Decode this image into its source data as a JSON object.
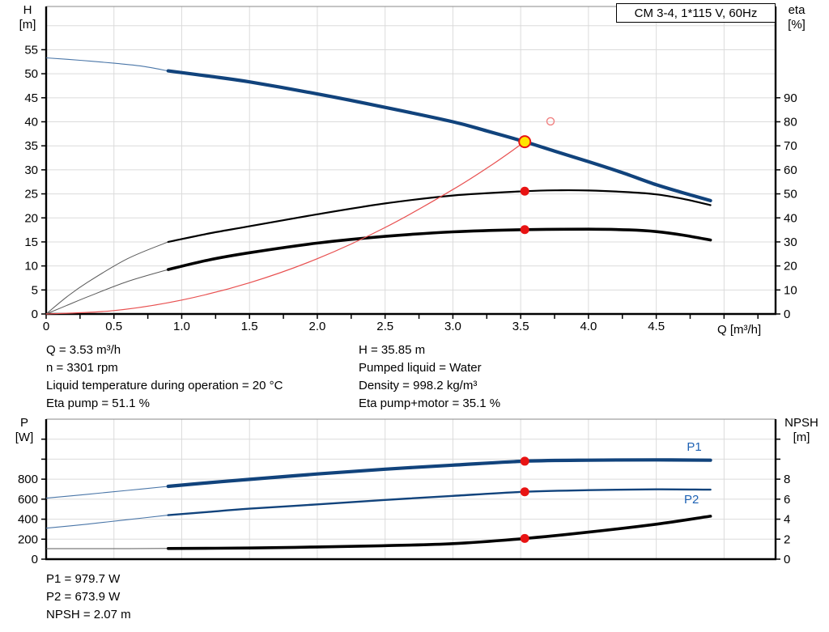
{
  "title_box": {
    "label": "CM 3-4, 1*115 V, 60Hz"
  },
  "colors": {
    "curve_blue": "#11437C",
    "label_blue": "#1E62B4",
    "red": "#E81313",
    "red_light": "#F08080",
    "yellow": "#FFE400",
    "grid": "#DBDBDB",
    "axis": "#000000",
    "border_light": "#8A8A8A",
    "thin_blue": "#4A76A8",
    "thin_black": "#5A5A5A"
  },
  "axis_corner_labels": {
    "top_left": [
      "H",
      "[m]"
    ],
    "top_right": [
      "eta",
      "[%]"
    ],
    "bottom_left": [
      "P",
      "[W]"
    ],
    "bottom_right": [
      "NPSH",
      "[m]"
    ]
  },
  "annotations": {
    "left": [
      "Q = 3.53 m³/h",
      "n = 3301 rpm",
      "Liquid temperature during operation = 20 °C",
      "Eta pump = 51.1 %"
    ],
    "right": [
      "H = 35.85 m",
      "Pumped liquid = Water",
      "Density = 998.2 kg/m³",
      "Eta pump+motor = 35.1 %"
    ],
    "bottom": [
      "P1 = 979.7 W",
      "P2 = 673.9 W",
      "NPSH = 2.07 m"
    ]
  },
  "chart_data": [
    {
      "type": "line",
      "title": "CM 3-4, 1*115 V, 60Hz",
      "xlabel": "Q [m³/h]",
      "ylabel_left": "H [m]",
      "ylabel_right": "eta [%]",
      "xlim": [
        0,
        5.38
      ],
      "ylim_left": [
        0,
        64
      ],
      "ylim_right": [
        0,
        128
      ],
      "x_grid": [
        0.5,
        1,
        1.5,
        2,
        2.5,
        3,
        3.5,
        4,
        4.5,
        5
      ],
      "y_grid_left": [
        5,
        10,
        15,
        20,
        25,
        30,
        35,
        40,
        45,
        50,
        55,
        60
      ],
      "x_ticks": [
        0,
        0.25,
        0.5,
        0.75,
        1,
        1.25,
        1.5,
        1.75,
        2,
        2.25,
        2.5,
        2.75,
        3,
        3.25,
        3.5,
        3.75,
        4,
        4.25,
        4.5,
        4.75,
        5,
        5.25
      ],
      "x_tick_labels": {
        "0": "0",
        "0.5": "0.5",
        "1": "1.0",
        "1.5": "1.5",
        "2": "2.0",
        "2.5": "2.5",
        "3": "3.0",
        "3.5": "3.5",
        "4": "4.0",
        "4.5": "4.5"
      },
      "left_ticks": [
        0,
        5,
        10,
        15,
        20,
        25,
        30,
        35,
        40,
        45,
        50,
        55
      ],
      "left_tick_labels": {
        "0": "0",
        "5": "5",
        "10": "10",
        "15": "15",
        "20": "20",
        "25": "25",
        "30": "30",
        "35": "35",
        "40": "40",
        "45": "45",
        "50": "50",
        "55": "55"
      },
      "right_ticks": [
        0,
        10,
        20,
        30,
        40,
        50,
        60,
        70,
        80,
        90
      ],
      "right_tick_labels": {
        "0": "0",
        "10": "10",
        "20": "20",
        "30": "30",
        "40": "40",
        "50": "50",
        "60": "60",
        "70": "70",
        "80": "80",
        "90": "90"
      },
      "series": [
        {
          "name": "h-curve",
          "axis": "left",
          "color": "#11437C",
          "thin_color": "#4A76A8",
          "width": 4.2,
          "thin_width": 1.1,
          "split": 0.9,
          "points": [
            [
              0,
              53.3
            ],
            [
              0.25,
              52.8
            ],
            [
              0.5,
              52.2
            ],
            [
              0.7,
              51.6
            ],
            [
              0.9,
              50.6
            ],
            [
              1.2,
              49.5
            ],
            [
              1.5,
              48.3
            ],
            [
              2.0,
              45.8
            ],
            [
              2.5,
              43.0
            ],
            [
              3.0,
              40.0
            ],
            [
              3.25,
              38.1
            ],
            [
              3.53,
              35.85
            ],
            [
              3.75,
              33.9
            ],
            [
              4.0,
              31.7
            ],
            [
              4.25,
              29.4
            ],
            [
              4.5,
              26.9
            ],
            [
              4.7,
              25.2
            ],
            [
              4.9,
              23.6
            ]
          ]
        },
        {
          "name": "eta-pump-curve",
          "axis": "right",
          "color": "#000000",
          "thin_color": "#5A5A5A",
          "width": 2.2,
          "thin_width": 1,
          "split": 0.9,
          "points": [
            [
              0,
              0
            ],
            [
              0.15,
              7
            ],
            [
              0.3,
              13
            ],
            [
              0.6,
              23
            ],
            [
              0.9,
              30
            ],
            [
              1.2,
              33.5
            ],
            [
              1.5,
              36.5
            ],
            [
              2.0,
              41.5
            ],
            [
              2.5,
              46.0
            ],
            [
              3.0,
              49.3
            ],
            [
              3.53,
              51.1
            ],
            [
              3.8,
              51.5
            ],
            [
              4.0,
              51.4
            ],
            [
              4.3,
              50.7
            ],
            [
              4.5,
              49.8
            ],
            [
              4.7,
              47.9
            ],
            [
              4.9,
              45.3
            ]
          ]
        },
        {
          "name": "eta-pump-motor-curve",
          "axis": "right",
          "color": "#000000",
          "thin_color": "#5A5A5A",
          "width": 3.6,
          "thin_width": 1,
          "split": 0.9,
          "points": [
            [
              0,
              0
            ],
            [
              0.15,
              3.5
            ],
            [
              0.3,
              7
            ],
            [
              0.6,
              13.5
            ],
            [
              0.9,
              18.5
            ],
            [
              1.2,
              22.5
            ],
            [
              1.5,
              25.5
            ],
            [
              2.0,
              29.5
            ],
            [
              2.5,
              32.3
            ],
            [
              3.0,
              34.2
            ],
            [
              3.53,
              35.1
            ],
            [
              4.0,
              35.3
            ],
            [
              4.3,
              35.0
            ],
            [
              4.5,
              34.3
            ],
            [
              4.7,
              32.8
            ],
            [
              4.9,
              30.8
            ]
          ]
        },
        {
          "name": "system-curve",
          "axis": "left",
          "color": "#E85050",
          "width": 1.2,
          "points": [
            [
              0,
              0
            ],
            [
              0.5,
              0.7
            ],
            [
              1.0,
              2.9
            ],
            [
              1.5,
              6.5
            ],
            [
              2.0,
              11.5
            ],
            [
              2.5,
              18.0
            ],
            [
              3.0,
              25.9
            ],
            [
              3.3,
              31.3
            ],
            [
              3.53,
              35.85
            ]
          ]
        }
      ],
      "markers": [
        {
          "name": "duty-point",
          "axis": "left",
          "q": 3.53,
          "v": 35.85,
          "r": 7,
          "fill": "#FFE400",
          "stroke": "#E81313",
          "stroke_width": 2,
          "interactable": true
        },
        {
          "name": "requested-duty-point",
          "axis": "left",
          "q": 3.72,
          "v": 40.1,
          "r": 4.5,
          "fill": "none",
          "stroke": "#F08080",
          "stroke_width": 1.4,
          "interactable": false
        },
        {
          "name": "eta-pump-duty-dot",
          "axis": "right",
          "q": 3.53,
          "v": 51.1,
          "r": 5.5,
          "fill": "#E81313",
          "interactable": false
        },
        {
          "name": "eta-pump-motor-duty-dot",
          "axis": "right",
          "q": 3.53,
          "v": 35.1,
          "r": 5.5,
          "fill": "#E81313",
          "interactable": false
        }
      ]
    },
    {
      "type": "line",
      "title": "Power and NPSH curves",
      "xlabel": "",
      "ylabel_left": "P [W]",
      "ylabel_right": "NPSH [m]",
      "xlim": [
        0,
        5.38
      ],
      "ylim_left": [
        0,
        1400
      ],
      "ylim_right": [
        0,
        14
      ],
      "x_grid": [
        0.5,
        1,
        1.5,
        2,
        2.5,
        3,
        3.5,
        4,
        4.5,
        5
      ],
      "y_grid_left": [
        200,
        400,
        600,
        800,
        1000,
        1200
      ],
      "x_ticks": [],
      "x_tick_labels": {},
      "left_ticks": [
        0,
        200,
        400,
        600,
        800,
        1000,
        1200
      ],
      "left_tick_labels": {
        "0": "0",
        "200": "200",
        "400": "400",
        "600": "600",
        "800": "800"
      },
      "right_ticks": [
        0,
        2,
        4,
        6,
        8,
        10,
        12
      ],
      "right_tick_labels": {
        "0": "0",
        "2": "2",
        "4": "4",
        "6": "6",
        "8": "8"
      },
      "series": [
        {
          "name": "p1-curve",
          "axis": "left",
          "color": "#11437C",
          "thin_color": "#4A76A8",
          "width": 4.2,
          "thin_width": 1.1,
          "split": 0.9,
          "label": {
            "text": "P1",
            "q": 4.78,
            "v": 1085,
            "color": "#1E62B4"
          },
          "points": [
            [
              0,
              610
            ],
            [
              0.3,
              648
            ],
            [
              0.6,
              688
            ],
            [
              0.9,
              728
            ],
            [
              1.2,
              765
            ],
            [
              1.5,
              798
            ],
            [
              2.0,
              852
            ],
            [
              2.5,
              900
            ],
            [
              3.0,
              940
            ],
            [
              3.53,
              979.7
            ],
            [
              4.0,
              990
            ],
            [
              4.5,
              993
            ],
            [
              4.9,
              990
            ]
          ]
        },
        {
          "name": "p2-curve",
          "axis": "left",
          "color": "#11437C",
          "thin_color": "#4A76A8",
          "width": 2.4,
          "thin_width": 1.1,
          "split": 0.9,
          "label": {
            "text": "P2",
            "q": 4.76,
            "v": 560,
            "color": "#1E62B4"
          },
          "points": [
            [
              0,
              310
            ],
            [
              0.3,
              350
            ],
            [
              0.6,
              395
            ],
            [
              0.9,
              440
            ],
            [
              1.2,
              473
            ],
            [
              1.5,
              505
            ],
            [
              2.0,
              548
            ],
            [
              2.5,
              592
            ],
            [
              3.0,
              633
            ],
            [
              3.53,
              673.9
            ],
            [
              4.0,
              690
            ],
            [
              4.5,
              698
            ],
            [
              4.9,
              695
            ]
          ]
        },
        {
          "name": "npsh-curve",
          "axis": "right",
          "color": "#000000",
          "thin_color": "#5A5A5A",
          "width": 3.6,
          "thin_width": 1,
          "split": 0.9,
          "points": [
            [
              0,
              1.05
            ],
            [
              0.5,
              1.05
            ],
            [
              0.9,
              1.07
            ],
            [
              1.5,
              1.12
            ],
            [
              2.0,
              1.22
            ],
            [
              2.5,
              1.35
            ],
            [
              3.0,
              1.55
            ],
            [
              3.53,
              2.07
            ],
            [
              4.0,
              2.7
            ],
            [
              4.5,
              3.5
            ],
            [
              4.9,
              4.3
            ]
          ]
        }
      ],
      "markers": [
        {
          "name": "p1-duty-dot",
          "axis": "left",
          "q": 3.53,
          "v": 979.7,
          "r": 5.5,
          "fill": "#E81313",
          "interactable": false
        },
        {
          "name": "p2-duty-dot",
          "axis": "left",
          "q": 3.53,
          "v": 673.9,
          "r": 5.5,
          "fill": "#E81313",
          "interactable": false
        },
        {
          "name": "npsh-duty-dot",
          "axis": "right",
          "q": 3.53,
          "v": 2.07,
          "r": 5.5,
          "fill": "#E81313",
          "interactable": false
        }
      ]
    }
  ]
}
